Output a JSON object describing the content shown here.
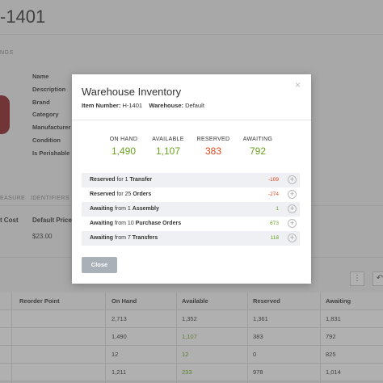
{
  "background": {
    "page_title": "-1401",
    "tag": "NGS",
    "field_labels": [
      "Name",
      "Description",
      "Brand",
      "Category",
      "Manufacturer",
      "Condition",
      "Is Perishable"
    ],
    "tabs": [
      "EASURE",
      "IDENTIFIERS"
    ],
    "cost_labels": [
      "t Cost",
      "Default Price"
    ],
    "cost_values": [
      "$23.00"
    ],
    "action_icons": [
      "⋮",
      "↶"
    ],
    "table": {
      "headers": [
        "Reorder Point",
        "On Hand",
        "Available",
        "Reserved",
        "Awaiting"
      ],
      "rows": [
        [
          "",
          "2,713",
          "1,352",
          "1,361",
          "1,831"
        ],
        [
          "",
          "1,490",
          "1,107",
          "383",
          "792"
        ],
        [
          "",
          "12",
          "12",
          "0",
          "825"
        ],
        [
          "",
          "1,211",
          "233",
          "978",
          "1,014"
        ]
      ]
    }
  },
  "modal": {
    "title": "Warehouse Inventory",
    "item_number_label": "Item Number:",
    "item_number": "H-1401",
    "warehouse_label": "Warehouse:",
    "warehouse": "Default",
    "close_icon": "×",
    "stats": [
      {
        "label": "ON HAND",
        "value": "1,490"
      },
      {
        "label": "AVAILABLE",
        "value": "1,107"
      },
      {
        "label": "RESERVED",
        "value": "383"
      },
      {
        "label": "AWAITING",
        "value": "792"
      }
    ],
    "rows": [
      {
        "bold1": "Reserved",
        "mid": " for 1 ",
        "bold2": "Transfer",
        "value": "-109"
      },
      {
        "bold1": "Reserved",
        "mid": " for 25 ",
        "bold2": "Orders",
        "value": "-274"
      },
      {
        "bold1": "Awaiting",
        "mid": " from 1 ",
        "bold2": "Assembly",
        "value": "1"
      },
      {
        "bold1": "Awaiting",
        "mid": " from 10 ",
        "bold2": "Purchase Orders",
        "value": "673"
      },
      {
        "bold1": "Awaiting",
        "mid": " from 7 ",
        "bold2": "Transfers",
        "value": "118"
      }
    ],
    "plus_icon": "+",
    "close_button": "Close"
  },
  "colors": {
    "green": "#6aa31f",
    "red": "#e2441b",
    "close_button": "#a9b0b8",
    "product": "#8c1f24"
  }
}
